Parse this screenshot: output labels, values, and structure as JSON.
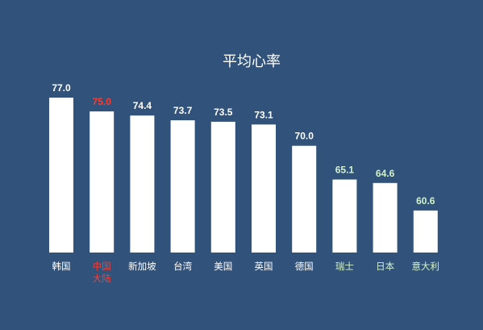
{
  "chart_data": {
    "type": "bar",
    "title": "平均心率",
    "xlabel": "",
    "ylabel": "",
    "grid": false,
    "categories": [
      "韩国",
      "中国大陆",
      "新加坡",
      "台湾",
      "美国",
      "英国",
      "德国",
      "瑞士",
      "日本",
      "意大利"
    ],
    "values": [
      77.0,
      75.0,
      74.4,
      73.7,
      73.5,
      73.1,
      70.0,
      65.1,
      64.6,
      60.6
    ],
    "value_labels": [
      "77.0",
      "75.0",
      "74.4",
      "73.7",
      "73.5",
      "73.1",
      "70.0",
      "65.1",
      "64.6",
      "60.6"
    ],
    "label_colors": [
      "#ffffff",
      "#ff3b30",
      "#ffffff",
      "#ffffff",
      "#ffffff",
      "#ffffff",
      "#ffffff",
      "#d2f2c8",
      "#d2f2c8",
      "#d2f2c8"
    ],
    "bar_color": "#ffffff",
    "background": "#31527a"
  }
}
